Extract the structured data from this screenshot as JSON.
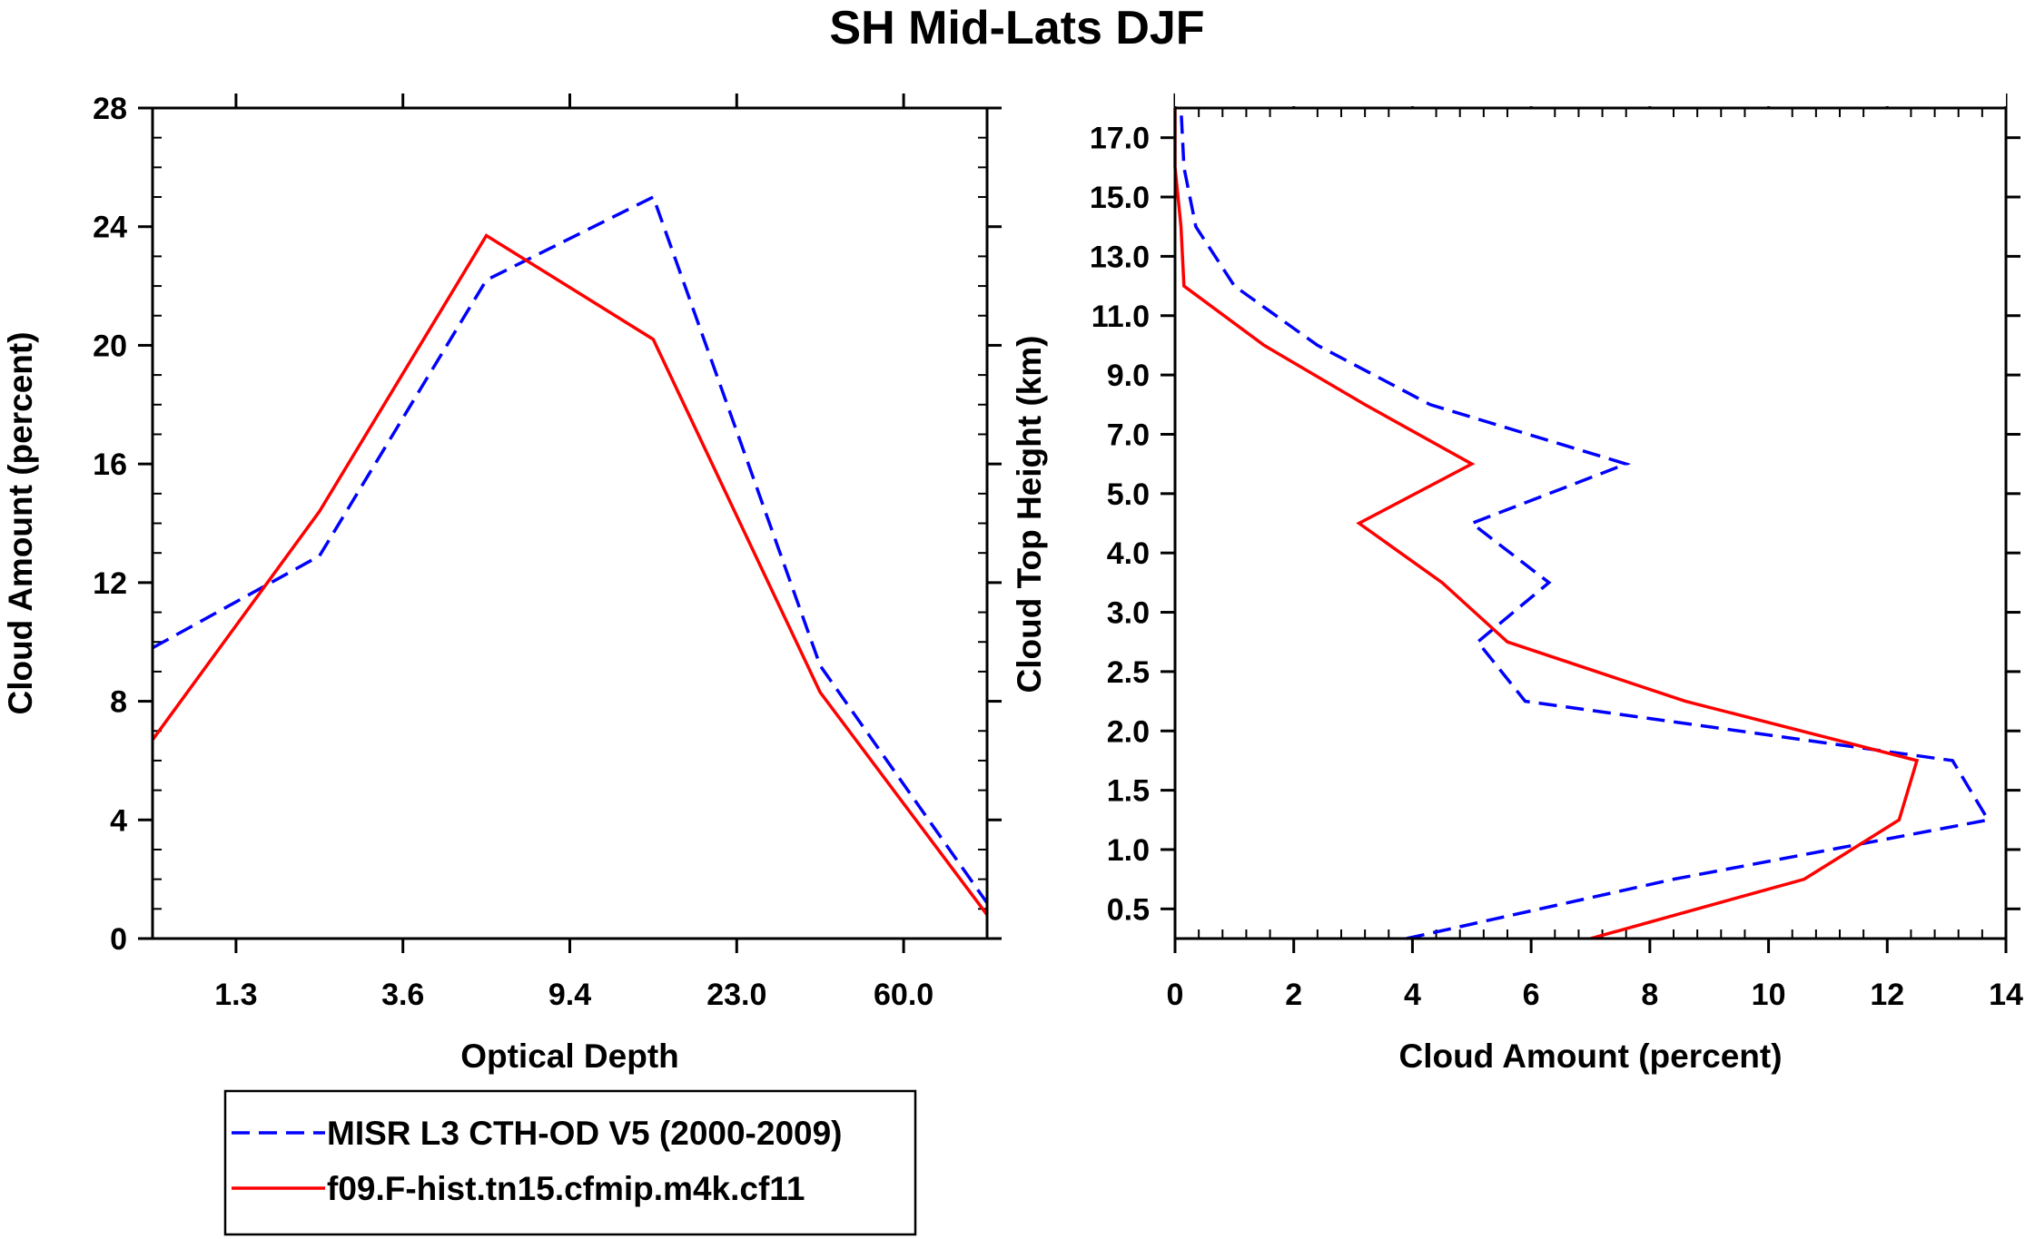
{
  "title": "SH Mid-Lats DJF",
  "colors": {
    "obs": "#0000ff",
    "model": "#ff0000",
    "axis": "#000000"
  },
  "legend": {
    "entries": [
      {
        "label": "MISR L3 CTH-OD V5 (2000-2009)",
        "color": "#0000ff",
        "style": "dashed"
      },
      {
        "label": "f09.F-hist.tn15.cfmip.m4k.cf11",
        "color": "#ff0000",
        "style": "solid"
      }
    ]
  },
  "chart_data": [
    {
      "type": "line",
      "title": "SH Mid-Lats DJF",
      "xlabel": "Optical Depth",
      "ylabel": "Cloud Amount (percent)",
      "xlim": [
        0,
        5
      ],
      "ylim": [
        0,
        28
      ],
      "xticks": [
        0.5,
        1.5,
        2.5,
        3.5,
        4.5
      ],
      "xtick_labels": [
        "1.3",
        "3.6",
        "9.4",
        "23.0",
        "60.0"
      ],
      "yticks": [
        0,
        4,
        8,
        12,
        16,
        20,
        24,
        28
      ],
      "ytick_labels": [
        "0",
        "4",
        "8",
        "12",
        "16",
        "20",
        "24",
        "28"
      ],
      "x": [
        0,
        1,
        2,
        3,
        4,
        5
      ],
      "series": [
        {
          "name": "MISR L3 CTH-OD V5 (2000-2009)",
          "style": "dashed",
          "values": [
            9.8,
            12.9,
            22.2,
            25.0,
            9.2,
            1.2
          ]
        },
        {
          "name": "f09.F-hist.tn15.cfmip.m4k.cf11",
          "style": "solid",
          "values": [
            6.7,
            14.4,
            23.7,
            20.2,
            8.3,
            0.8
          ]
        }
      ]
    },
    {
      "type": "line",
      "orientation": "horizontal",
      "xlabel": "Cloud Amount (percent)",
      "ylabel": "Cloud Top Height (km)",
      "xlim": [
        0,
        14
      ],
      "ylim": [
        0,
        14
      ],
      "xticks": [
        0,
        2,
        4,
        6,
        8,
        10,
        12,
        14
      ],
      "xtick_labels": [
        "0",
        "2",
        "4",
        "6",
        "8",
        "10",
        "12",
        "14"
      ],
      "yticks": [
        0.5,
        1.5,
        2.5,
        3.5,
        4.5,
        5.5,
        6.5,
        7.5,
        8.5,
        9.5,
        10.5,
        11.5,
        12.5,
        13.5
      ],
      "ytick_labels": [
        "0.5",
        "1.0",
        "1.5",
        "2.0",
        "2.5",
        "3.0",
        "4.0",
        "5.0",
        "7.0",
        "9.0",
        "11.0",
        "13.0",
        "15.0",
        "17.0"
      ],
      "levels": [
        0,
        1,
        2,
        3,
        4,
        5,
        6,
        7,
        8,
        9,
        10,
        11,
        12,
        13,
        14
      ],
      "series": [
        {
          "name": "MISR L3 CTH-OD V5 (2000-2009)",
          "style": "dashed",
          "values": [
            3.9,
            8.4,
            13.7,
            13.1,
            5.9,
            5.1,
            6.3,
            5.0,
            7.6,
            4.3,
            2.4,
            1.0,
            0.35,
            0.15,
            0.1
          ]
        },
        {
          "name": "f09.F-hist.tn15.cfmip.m4k.cf11",
          "style": "solid",
          "values": [
            7.0,
            10.6,
            12.2,
            12.5,
            8.6,
            5.6,
            4.5,
            3.1,
            5.0,
            3.2,
            1.5,
            0.15,
            0.1,
            0.0,
            0.0
          ]
        }
      ]
    }
  ]
}
